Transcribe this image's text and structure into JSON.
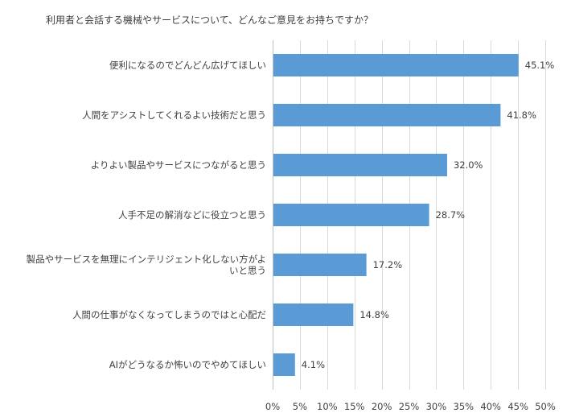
{
  "chart_data": {
    "type": "bar",
    "orientation": "horizontal",
    "title": "利用者と会話する機械やサービスについて、どんなご意見をお持ちですか？",
    "categories": [
      [
        "便利になるのでどんどん広げてほしい"
      ],
      [
        "人間をアシストしてくれるよい技術だと思う"
      ],
      [
        "よりよい製品やサービスにつながると思う"
      ],
      [
        "人手不足の解消などに役立つと思う"
      ],
      [
        "製品やサービスを無理にインテリジェント化しない方がよ",
        "いと思う"
      ],
      [
        "人間の仕事がなくなってしまうのではと心配だ"
      ],
      [
        "AIがどうなるか怖いのでやめてほしい"
      ]
    ],
    "values": [
      45.1,
      41.8,
      32.0,
      28.7,
      17.2,
      14.8,
      4.1
    ],
    "data_labels": [
      "45.1%",
      "41.8%",
      "32.0%",
      "28.7%",
      "17.2%",
      "14.8%",
      "4.1%"
    ],
    "xlim": [
      0,
      50
    ],
    "xticks": [
      0,
      5,
      10,
      15,
      20,
      25,
      30,
      35,
      40,
      45,
      50
    ],
    "xtick_labels": [
      "0%",
      "5%",
      "10%",
      "15%",
      "20%",
      "25%",
      "30%",
      "35%",
      "40%",
      "45%",
      "50%"
    ],
    "grid": true,
    "legend": "none",
    "bar_color": "#5b9bd5"
  }
}
